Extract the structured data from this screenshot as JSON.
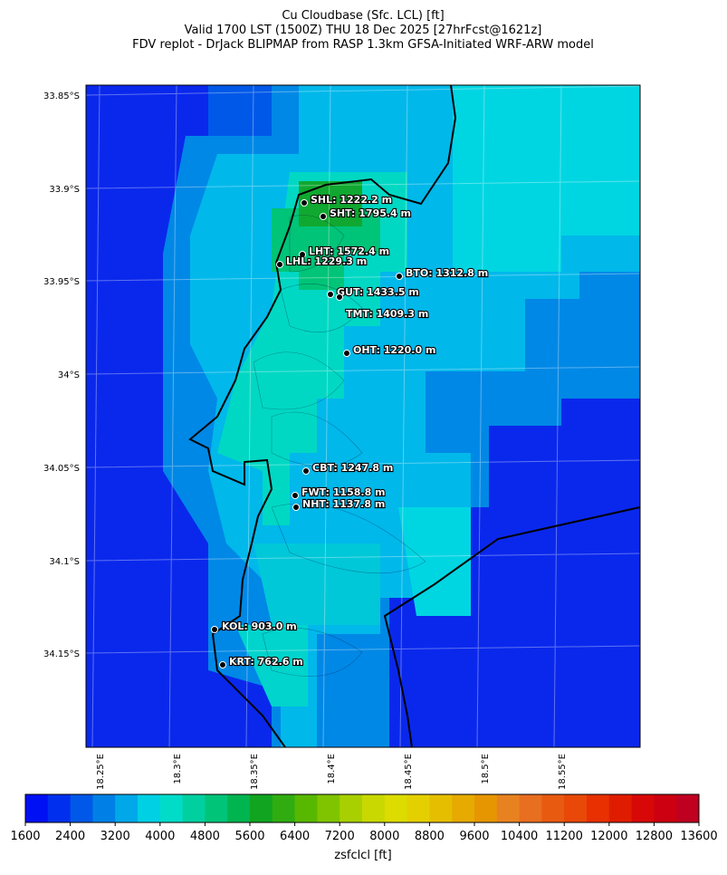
{
  "title": [
    "Cu Cloudbase (Sfc. LCL) [ft]",
    "Valid 1700 LST (1500Z) THU 18 Dec 2025 [27hrFcst@1621z]",
    "FDV replot - DrJack BLIPMAP from RASP 1.3km GFSA-Initiated WRF-ARW model"
  ],
  "lat_labels": [
    "33.85°S",
    "33.9°S",
    "33.95°S",
    "34°S",
    "34.05°S",
    "34.1°S",
    "34.15°S"
  ],
  "lon_labels": [
    "18.25°E",
    "18.3°E",
    "18.35°E",
    "18.4°E",
    "18.45°E",
    "18.5°E",
    "18.55°E"
  ],
  "stations": [
    "SHL: 1222.2 m",
    "SHT: 1795.4 m",
    "LHT: 1572.4 m",
    "LHL: 1229.3 m",
    "BTO: 1312.8 m",
    "GUT: 1433.5 m",
    "TMT: 1409.3 m",
    "OHT: 1220.0 m",
    "CBT: 1247.8 m",
    "FWT: 1158.8 m",
    "NHT: 1137.8 m",
    "KOL: 903.0 m",
    "KRT: 762.6 m"
  ],
  "colorbar": {
    "label": "zsfclcl [ft]",
    "range": [
      1600,
      13600
    ],
    "step": 400,
    "ticks": [
      1600,
      2400,
      3200,
      4000,
      4800,
      5600,
      6400,
      7200,
      8000,
      8800,
      9600,
      10400,
      11200,
      12000,
      12800,
      13600
    ],
    "colors": [
      "#0010f4",
      "#0030ee",
      "#0058e8",
      "#0080e6",
      "#00a8ea",
      "#00d0e4",
      "#00dcc8",
      "#00d0a0",
      "#00c478",
      "#00b450",
      "#10a420",
      "#30ac10",
      "#58b800",
      "#80c400",
      "#a8d000",
      "#c8d800",
      "#dcdc00",
      "#e4d000",
      "#e6be00",
      "#e6aa00",
      "#e69600",
      "#e88220",
      "#e86e20",
      "#e85a10",
      "#e84808",
      "#e83000",
      "#e01c00",
      "#d80808",
      "#cc0010",
      "#c00020"
    ]
  }
}
